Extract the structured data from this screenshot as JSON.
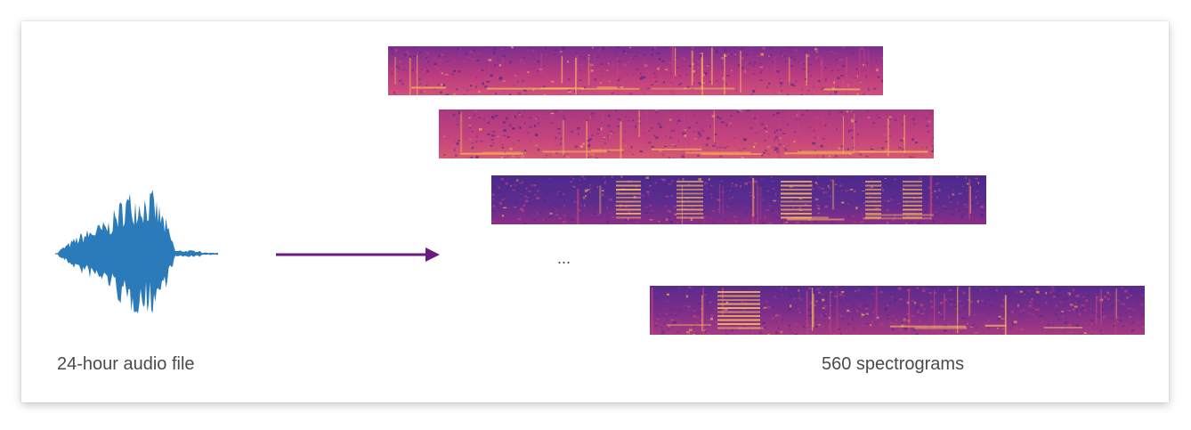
{
  "left_label": "24-hour audio file",
  "right_label": "560 spectrograms",
  "ellipsis": "...",
  "colors": {
    "waveform": "#2b7bba",
    "arrow": "#6a1b7f",
    "spectrogram_dark": "#4b2a8c",
    "spectrogram_mid": "#c4427f",
    "spectrogram_bright": "#f6b55a"
  },
  "spectrograms": [
    {
      "name": "spectrogram-1"
    },
    {
      "name": "spectrogram-2"
    },
    {
      "name": "spectrogram-3"
    },
    {
      "name": "spectrogram-last"
    }
  ]
}
